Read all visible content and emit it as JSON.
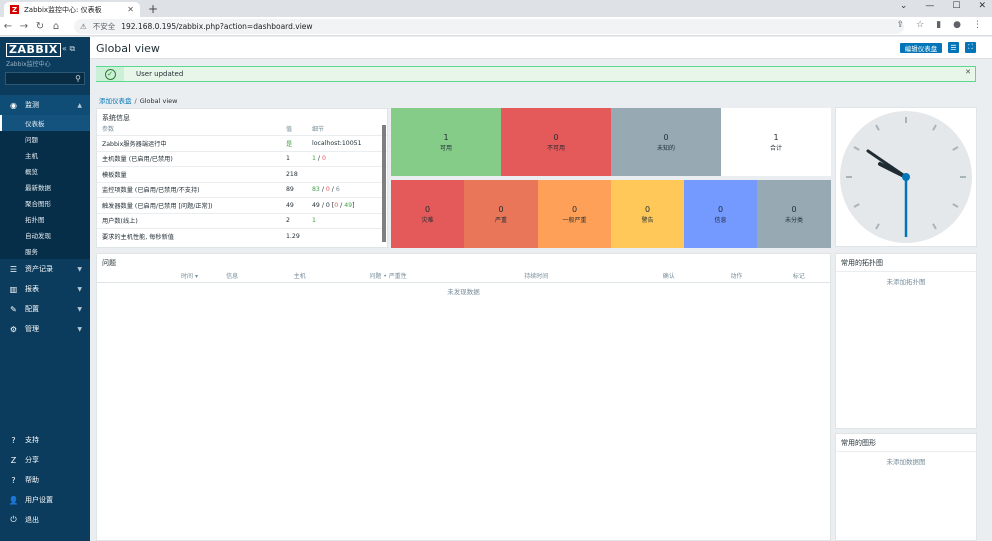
{
  "browser": {
    "tab_title": "Zabbix监控中心: 仪表板",
    "favicon": "Z",
    "insecure_label": "不安全",
    "url": "192.168.0.195/zabbix.php?action=dashboard.view"
  },
  "sidebar": {
    "logo": "ZABBIX",
    "subtitle": "Zabbix监控中心",
    "search_placeholder": "",
    "menu": [
      {
        "label": "监测",
        "icon": "eye-icon"
      },
      {
        "label": "资产记录",
        "icon": "list-icon"
      },
      {
        "label": "报表",
        "icon": "chart-icon"
      },
      {
        "label": "配置",
        "icon": "wrench-icon"
      },
      {
        "label": "管理",
        "icon": "gear-icon"
      }
    ],
    "submenu": [
      "仪表板",
      "问题",
      "主机",
      "概览",
      "最新数据",
      "聚合图形",
      "拓扑图",
      "自动发现",
      "服务"
    ],
    "bottom": [
      {
        "label": "支持",
        "icon": "support-icon"
      },
      {
        "label": "分享",
        "icon": "share-icon"
      },
      {
        "label": "帮助",
        "icon": "help-icon"
      },
      {
        "label": "用户设置",
        "icon": "user-icon"
      },
      {
        "label": "退出",
        "icon": "power-icon"
      }
    ]
  },
  "header": {
    "title": "Global view",
    "edit_button": "编辑仪表盘"
  },
  "message": {
    "text": "User updated"
  },
  "breadcrumb": {
    "parent": "添加仪表盘",
    "current": "Global view"
  },
  "sysinfo": {
    "title": "系统信息",
    "columns": [
      "参数",
      "值",
      "细节"
    ],
    "rows": [
      {
        "param": "Zabbix服务器端运行中",
        "value": "是",
        "detail": "localhost:10051"
      },
      {
        "param": "主机数量 (已启用/已禁用)",
        "value": "1",
        "detail_a": "1",
        "detail_b": "0"
      },
      {
        "param": "模板数量",
        "value": "218",
        "detail": ""
      },
      {
        "param": "监控项数量 (已启用/已禁用/不支持)",
        "value": "89",
        "detail_a": "83",
        "detail_b": "0",
        "detail_c": "6"
      },
      {
        "param": "触发器数量 (已启用/已禁用 [问题/正常])",
        "value": "49",
        "detail_a": "49",
        "detail_b": "0",
        "detail_c": "0",
        "detail_d": "49"
      },
      {
        "param": "用户数(线上)",
        "value": "2",
        "detail": "1"
      },
      {
        "param": "要求的主机性能, 每秒新值",
        "value": "1.29",
        "detail": ""
      }
    ]
  },
  "host_availability": [
    {
      "count": "1",
      "label": "可用",
      "color": "#86cc89"
    },
    {
      "count": "0",
      "label": "不可用",
      "color": "#e45959"
    },
    {
      "count": "0",
      "label": "未知的",
      "color": "#97aab3"
    },
    {
      "count": "1",
      "label": "合计",
      "color": "#ffffff"
    }
  ],
  "severity": [
    {
      "count": "0",
      "label": "灾难",
      "color": "#e45959"
    },
    {
      "count": "0",
      "label": "严重",
      "color": "#e97659"
    },
    {
      "count": "0",
      "label": "一般严重",
      "color": "#ffa059"
    },
    {
      "count": "0",
      "label": "警告",
      "color": "#ffc859"
    },
    {
      "count": "0",
      "label": "信息",
      "color": "#7499ff"
    },
    {
      "count": "0",
      "label": "未分类",
      "color": "#97aab3"
    }
  ],
  "problems": {
    "title": "问题",
    "columns": [
      "时间 ▾",
      "信息",
      "主机",
      "问题 • 严重性",
      "持续时间",
      "确认",
      "动作",
      "标记"
    ],
    "empty": "未发现数据"
  },
  "fav_maps": {
    "title": "常用的拓扑图",
    "empty": "未添加拓扑图"
  },
  "fav_graphs": {
    "title": "常用的图形",
    "empty": "未添加数据图"
  },
  "clock": {
    "hour": 10,
    "minute": 30,
    "second": 30
  }
}
